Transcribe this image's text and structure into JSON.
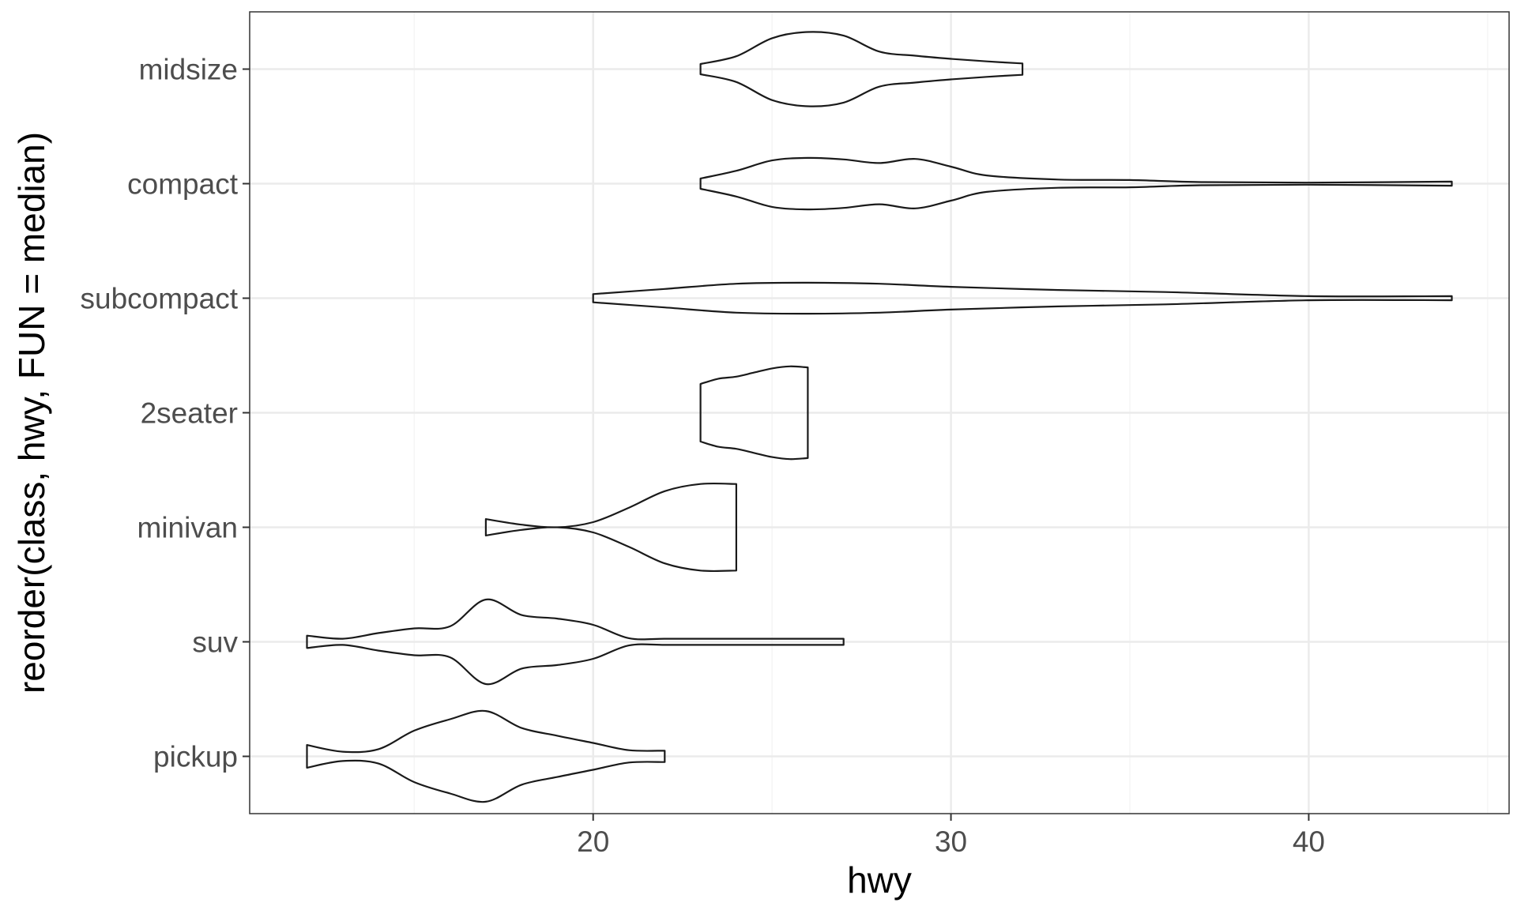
{
  "chart_data": {
    "type": "violin",
    "orientation": "horizontal",
    "xlabel": "hwy",
    "ylabel": "reorder(class, hwy, FUN = median)",
    "xlim": [
      10.4,
      45.6
    ],
    "x_major_ticks": [
      20,
      30,
      40
    ],
    "x_minor_ticks": [
      15,
      25,
      35,
      45
    ],
    "grid": true,
    "theme": "bw",
    "categories": [
      "pickup",
      "suv",
      "minivan",
      "2seater",
      "subcompact",
      "compact",
      "midsize"
    ],
    "series": [
      {
        "category": "pickup",
        "x": [
          12,
          13,
          14,
          15,
          16,
          17,
          18,
          19,
          20,
          21,
          22
        ],
        "density": [
          0.22,
          0.09,
          0.14,
          0.5,
          0.72,
          0.88,
          0.55,
          0.4,
          0.26,
          0.12,
          0.11
        ]
      },
      {
        "category": "suv",
        "x": [
          12,
          13,
          14,
          15,
          16,
          17,
          18,
          19,
          20,
          21,
          22,
          23,
          24,
          25,
          26,
          27
        ],
        "density": [
          0.12,
          0.06,
          0.17,
          0.26,
          0.3,
          0.82,
          0.52,
          0.45,
          0.33,
          0.07,
          0.06,
          0.06,
          0.06,
          0.06,
          0.06,
          0.06
        ]
      },
      {
        "category": "minivan",
        "x": [
          17,
          18,
          19,
          20,
          21,
          22,
          23,
          24
        ],
        "density": [
          0.16,
          0.05,
          0.0,
          0.1,
          0.38,
          0.7,
          0.84,
          0.84
        ]
      },
      {
        "category": "2seater",
        "x": [
          23,
          23.5,
          24,
          24.5,
          25,
          25.5,
          26
        ],
        "density": [
          0.56,
          0.66,
          0.7,
          0.78,
          0.86,
          0.9,
          0.88
        ]
      },
      {
        "category": "subcompact",
        "x": [
          20,
          22,
          24,
          26,
          28,
          30,
          33,
          36,
          40,
          44
        ],
        "density": [
          0.08,
          0.18,
          0.28,
          0.3,
          0.28,
          0.22,
          0.16,
          0.12,
          0.04,
          0.04
        ]
      },
      {
        "category": "compact",
        "x": [
          23,
          24,
          25,
          26,
          27,
          28,
          29,
          30,
          31,
          33,
          35,
          37,
          40,
          44
        ],
        "density": [
          0.1,
          0.25,
          0.45,
          0.5,
          0.47,
          0.4,
          0.48,
          0.33,
          0.16,
          0.08,
          0.07,
          0.03,
          0.02,
          0.04
        ]
      },
      {
        "category": "midsize",
        "x": [
          23,
          24,
          25,
          26,
          27,
          28,
          29,
          30,
          31,
          32
        ],
        "density": [
          0.1,
          0.25,
          0.6,
          0.72,
          0.65,
          0.34,
          0.26,
          0.2,
          0.15,
          0.11
        ]
      }
    ],
    "colors": {
      "outline": "#1a1a1a",
      "grid_major": "#ebebeb",
      "grid_minor": "#f5f5f5",
      "panel_border": "#333333",
      "tick_text": "#4d4d4d",
      "axis_title": "#000000"
    }
  }
}
